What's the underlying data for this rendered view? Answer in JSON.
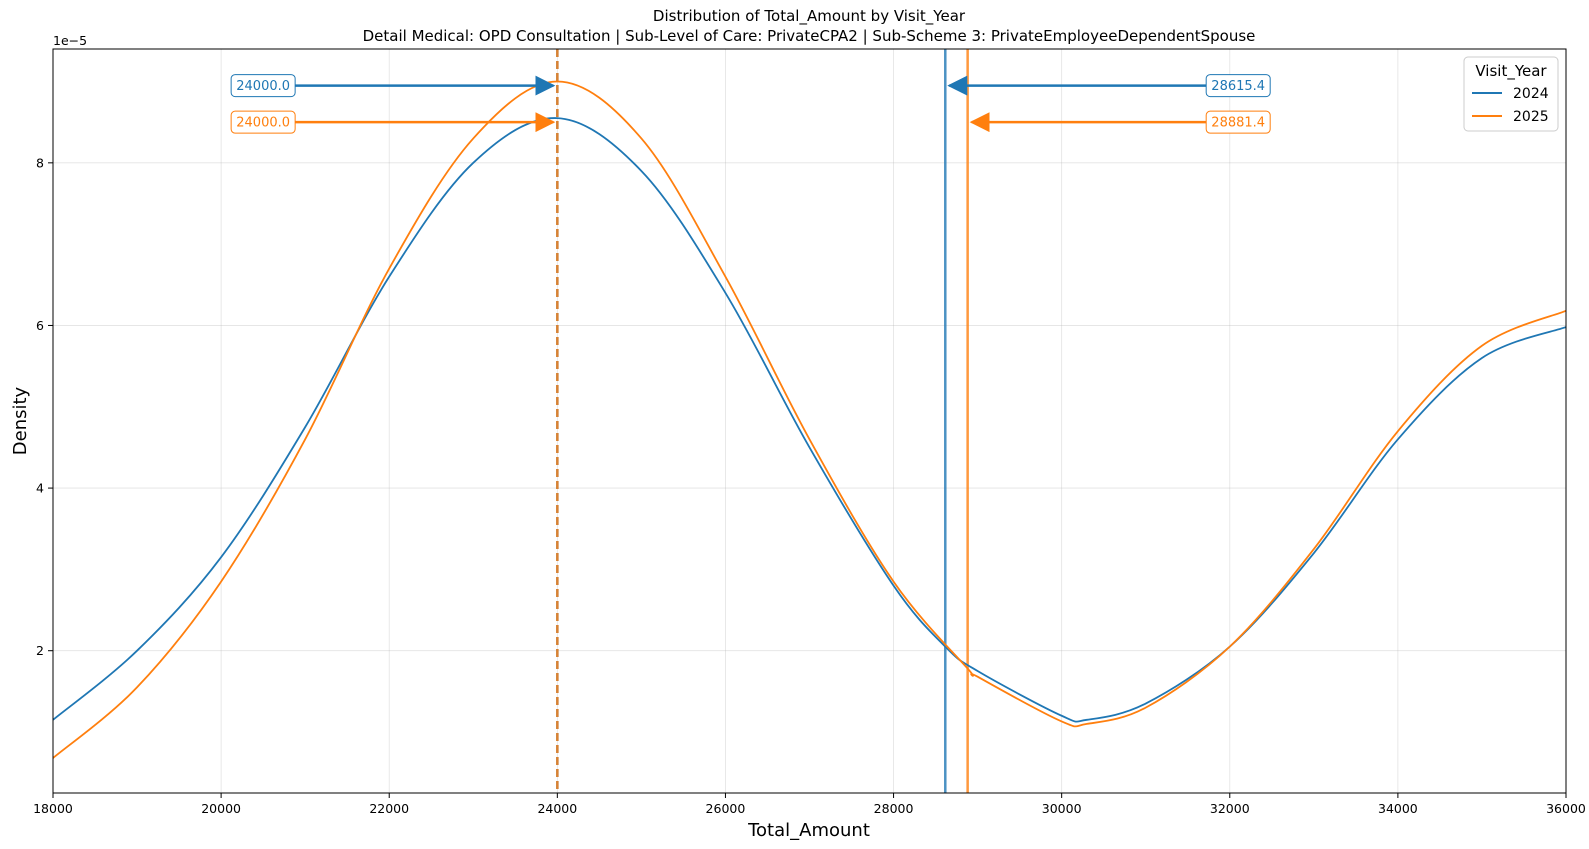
{
  "chart_data": {
    "type": "line",
    "title": "Distribution of Total_Amount by Visit_Year",
    "subtitle": "Detail Medical: OPD Consultation | Sub-Level of Care: PrivateCPA2 | Sub-Scheme 3: PrivateEmployeeDependentSpouse",
    "xlabel": "Total_Amount",
    "ylabel": "Density",
    "y_offset_label": "1e−5",
    "xlim": [
      18000,
      36000
    ],
    "ylim": [
      0.25,
      9.4
    ],
    "x_ticks": [
      18000,
      20000,
      22000,
      24000,
      26000,
      28000,
      30000,
      32000,
      34000,
      36000
    ],
    "x_tick_labels": [
      "18000",
      "20000",
      "22000",
      "24000",
      "26000",
      "28000",
      "30000",
      "32000",
      "34000",
      "36000"
    ],
    "y_ticks": [
      2,
      4,
      6,
      8
    ],
    "y_tick_labels": [
      "2",
      "4",
      "6",
      "8"
    ],
    "grid": true,
    "legend": {
      "title": "Visit_Year",
      "position": "top-right"
    },
    "series": [
      {
        "name": "2024",
        "color": "#1f77b4",
        "x": [
          18000,
          19000,
          20000,
          21000,
          22000,
          23000,
          24000,
          25000,
          26000,
          27000,
          28000,
          28615.4,
          29000,
          30000,
          30300,
          31000,
          32000,
          33000,
          34000,
          35000,
          36000
        ],
        "y": [
          1.15,
          2.0,
          3.15,
          4.75,
          6.6,
          8.0,
          8.55,
          7.9,
          6.4,
          4.5,
          2.8,
          2.05,
          1.75,
          1.2,
          1.15,
          1.35,
          2.05,
          3.2,
          4.6,
          5.6,
          5.98
        ]
      },
      {
        "name": "2025",
        "color": "#ff7f0e",
        "x": [
          18000,
          19000,
          20000,
          21000,
          22000,
          23000,
          24000,
          25000,
          26000,
          27000,
          28000,
          28881.4,
          29000,
          30000,
          30300,
          31000,
          32000,
          33000,
          34000,
          35000,
          36000
        ],
        "y": [
          0.68,
          1.55,
          2.85,
          4.6,
          6.7,
          8.3,
          9.0,
          8.3,
          6.6,
          4.6,
          2.85,
          1.78,
          1.68,
          1.13,
          1.1,
          1.3,
          2.05,
          3.25,
          4.7,
          5.75,
          6.18
        ]
      }
    ],
    "vertical_lines": [
      {
        "series": "2024",
        "x": 24000,
        "style": "dashed"
      },
      {
        "series": "2025",
        "x": 24000,
        "style": "dashed"
      },
      {
        "series": "2024",
        "x": 28615.4,
        "style": "solid"
      },
      {
        "series": "2025",
        "x": 28881.4,
        "style": "solid"
      }
    ],
    "annotations": [
      {
        "series": "2024",
        "text": "24000.0",
        "target_x": 24000,
        "target_y": 8.95,
        "text_x": 20500,
        "side": "left"
      },
      {
        "series": "2025",
        "text": "24000.0",
        "target_x": 24000,
        "target_y": 8.5,
        "text_x": 20500,
        "side": "left"
      },
      {
        "series": "2024",
        "text": "28615.4",
        "target_x": 28615.4,
        "target_y": 8.95,
        "text_x": 32100,
        "side": "right"
      },
      {
        "series": "2025",
        "text": "28881.4",
        "target_x": 28881.4,
        "target_y": 8.5,
        "text_x": 32100,
        "side": "right"
      }
    ]
  }
}
